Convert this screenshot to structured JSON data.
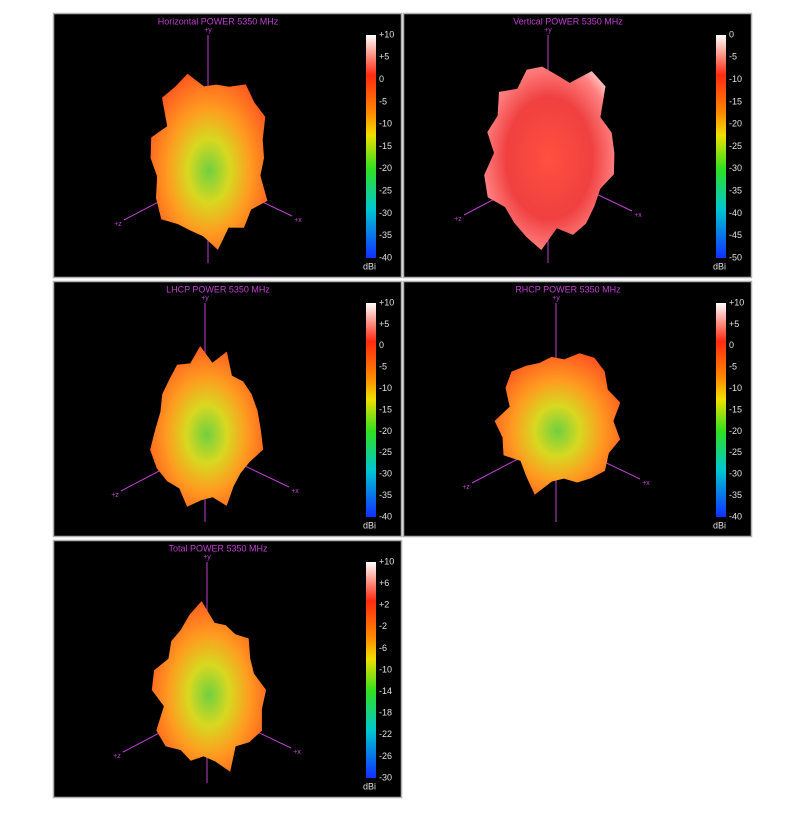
{
  "panels": [
    {
      "title": "Horizontal POWER 5350  MHz",
      "axes": {
        "y": "+y",
        "z": "+z",
        "x": "+x"
      },
      "colorbar": {
        "ticks": [
          "+10",
          "+5",
          "0",
          "-5",
          "-10",
          "-15",
          "-20",
          "-25",
          "-30",
          "-35",
          "-40"
        ],
        "unit": "dBi"
      }
    },
    {
      "title": "Vertical POWER 5350  MHz",
      "axes": {
        "y": "+y",
        "z": "+z",
        "x": "+x"
      },
      "colorbar": {
        "ticks": [
          "0",
          "-5",
          "-10",
          "-15",
          "-20",
          "-25",
          "-30",
          "-35",
          "-40",
          "-45",
          "-50"
        ],
        "unit": "dBi"
      }
    },
    {
      "title": "LHCP POWER 5350  MHz",
      "axes": {
        "y": "+y",
        "z": "+z",
        "x": "+x"
      },
      "colorbar": {
        "ticks": [
          "+10",
          "+5",
          "0",
          "-5",
          "-10",
          "-15",
          "-20",
          "-25",
          "-30",
          "-35",
          "-40"
        ],
        "unit": "dBi"
      }
    },
    {
      "title": "RHCP POWER 5350  MHz",
      "axes": {
        "y": "+y",
        "z": "+z",
        "x": "+x"
      },
      "colorbar": {
        "ticks": [
          "+10",
          "+5",
          "0",
          "-5",
          "-10",
          "-15",
          "-20",
          "-25",
          "-30",
          "-35",
          "-40"
        ],
        "unit": "dBi"
      }
    },
    {
      "title": "Total POWER 5350  MHz",
      "axes": {
        "y": "+y",
        "z": "+z",
        "x": "+x"
      },
      "colorbar": {
        "ticks": [
          "+10",
          "+6",
          "+2",
          "-2",
          "-6",
          "-10",
          "-14",
          "-18",
          "-22",
          "-26",
          "-30"
        ],
        "unit": "dBi"
      }
    }
  ]
}
